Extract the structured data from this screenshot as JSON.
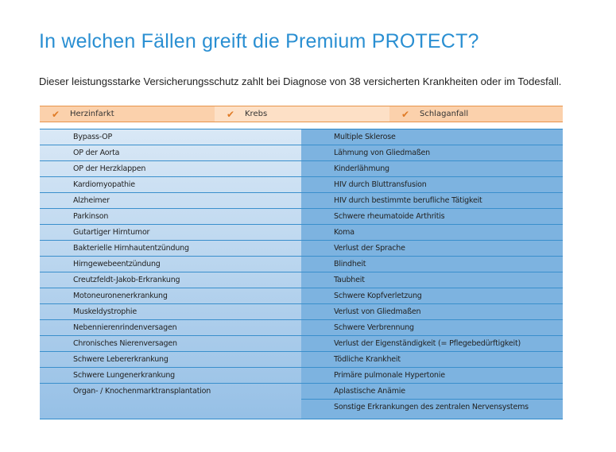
{
  "title": "In welchen Fällen greift die Premium PROTECT?",
  "subtitle": "Dieser leistungsstarke Versicherungsschutz zahlt bei Diagnose von 38 versicherten Krankheiten oder im Todesfall.",
  "header_items": [
    {
      "label": "Herzinfarkt",
      "icon": "check-icon"
    },
    {
      "label": "Krebs",
      "icon": "check-icon"
    },
    {
      "label": "Schlaganfall",
      "icon": "check-icon"
    }
  ],
  "colors": {
    "title": "#2a8fd2",
    "header": "#fbd1ac",
    "header_alt": "#fde0c6",
    "accent_check": "#e07b26",
    "right_column": "#7db3e0"
  },
  "left_column": [
    "Bypass-OP",
    "OP der Aorta",
    "OP der Herzklappen",
    "Kardiomyopathie",
    "Alzheimer",
    "Parkinson",
    "Gutartiger Hirntumor",
    "Bakterielle Hirnhautentzündung",
    "Hirngewebeentzündung",
    "Creutzfeldt-Jakob-Erkrankung",
    "Motoneuronenerkrankung",
    "Muskeldystrophie",
    "Nebennierenrindenversagen",
    "Chronisches Nierenversagen",
    "Schwere Lebererkrankung",
    "Schwere Lungenerkrankung",
    "Organ- / Knochenmarktransplantation"
  ],
  "right_column": [
    "Multiple Sklerose",
    "Lähmung von Gliedmaßen",
    "Kinderlähmung",
    "HIV durch Bluttransfusion",
    "HIV durch bestimmte berufliche Tätigkeit",
    "Schwere rheumatoide Arthritis",
    "Koma",
    "Verlust der Sprache",
    "Blindheit",
    "Taubheit",
    "Schwere Kopfverletzung",
    "Verlust von Gliedmaßen",
    "Schwere Verbrennung",
    "Verlust der Eigenständigkeit (= Pflegebedürftigkeit)",
    "Tödliche Krankheit",
    "Primäre pulmonale Hypertonie",
    "Aplastische Anämie",
    "Sonstige Erkrankungen des zentralen Nervensystems"
  ]
}
